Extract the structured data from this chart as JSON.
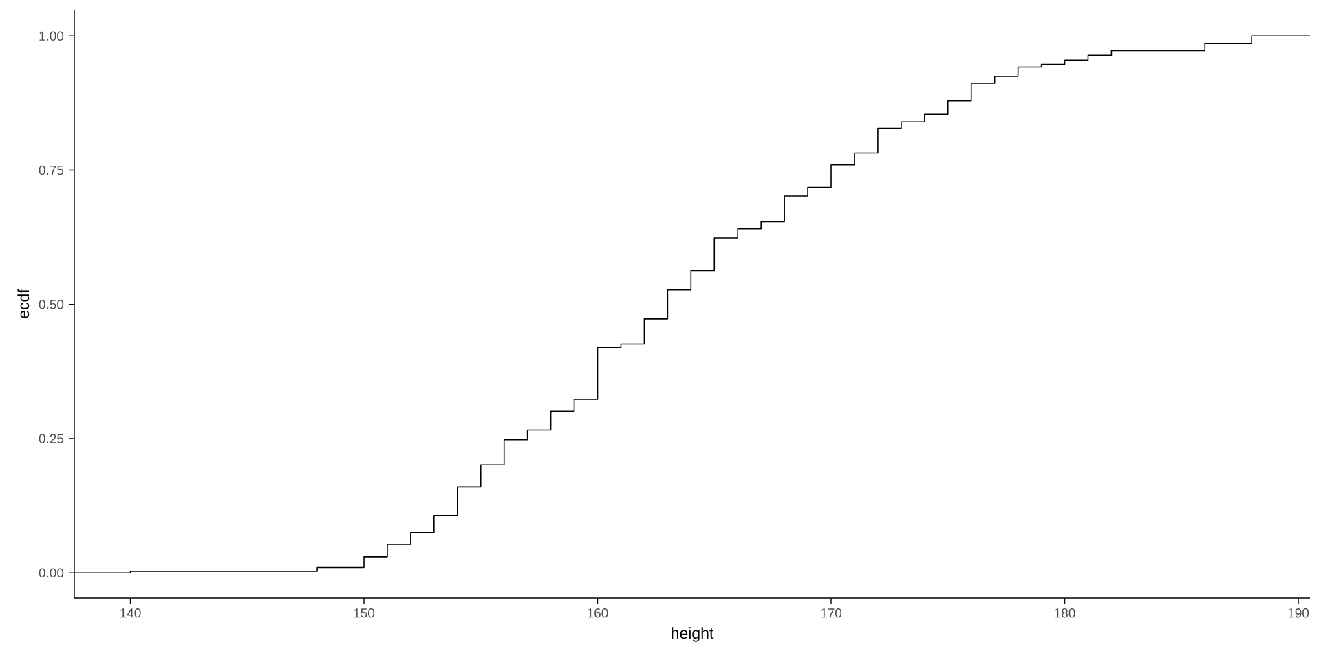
{
  "chart_data": {
    "type": "step",
    "xlabel": "height",
    "ylabel": "ecdf",
    "color": "#000000",
    "x": [
      137.6,
      140,
      148,
      150,
      151,
      152,
      153,
      154,
      155,
      156,
      157,
      158,
      159,
      160,
      161,
      162,
      163,
      164,
      165,
      166,
      167,
      168,
      169,
      170,
      171,
      172,
      173,
      174,
      175,
      176,
      177,
      178,
      179,
      180,
      181,
      182,
      186,
      188,
      190.5
    ],
    "values": [
      0,
      0.003,
      0.01,
      0.03,
      0.053,
      0.075,
      0.107,
      0.16,
      0.201,
      0.248,
      0.266,
      0.301,
      0.323,
      0.42,
      0.426,
      0.473,
      0.527,
      0.563,
      0.624,
      0.641,
      0.654,
      0.702,
      0.718,
      0.76,
      0.782,
      0.828,
      0.84,
      0.854,
      0.879,
      0.912,
      0.925,
      0.942,
      0.947,
      0.955,
      0.964,
      0.973,
      0.986,
      1.0,
      1.0
    ],
    "xlim": [
      137.6,
      190.5
    ],
    "ylim": [
      -0.047,
      1.049
    ],
    "xticks": [
      140,
      150,
      160,
      170,
      180,
      190
    ],
    "yticks": [
      {
        "value": 0,
        "label": "0.00"
      },
      {
        "value": 0.25,
        "label": "0.25"
      },
      {
        "value": 0.5,
        "label": "0.50"
      },
      {
        "value": 0.75,
        "label": "0.75"
      },
      {
        "value": 1,
        "label": "1.00"
      }
    ]
  }
}
